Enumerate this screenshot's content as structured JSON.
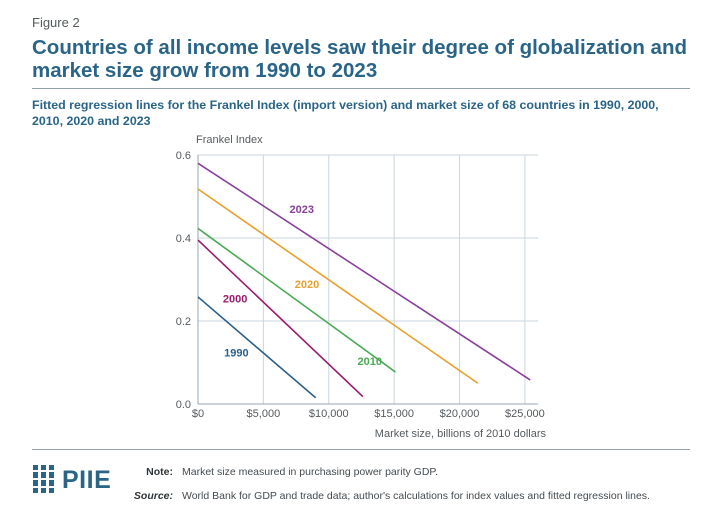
{
  "figure_label": "Figure 2",
  "headline": "Countries of all income levels saw their degree of globalization and market size grow from 1990 to 2023",
  "subtitle": "Fitted regression lines for the Frankel Index (import version) and market size of 68 countries in 1990, 2000, 2010, 2020 and 2023",
  "chart_data": {
    "type": "line",
    "title": "",
    "xlabel": "Market size, billions of 2010 dollars",
    "ylabel": "Frankel Index",
    "xlim": [
      0,
      26000
    ],
    "ylim": [
      0,
      0.6
    ],
    "x_ticks": [
      0,
      5000,
      10000,
      15000,
      20000,
      25000
    ],
    "x_tick_labels": [
      "$0",
      "$5,000",
      "$10,000",
      "$15,000",
      "$20,000",
      "$25,000"
    ],
    "y_ticks": [
      0.0,
      0.2,
      0.4,
      0.6
    ],
    "y_tick_labels": [
      "0.0",
      "0.2",
      "0.4",
      "0.6"
    ],
    "grid": true,
    "series": [
      {
        "name": "1990",
        "color": "#2a5f8a",
        "x": [
          0,
          9000
        ],
        "y": [
          0.258,
          0.015
        ],
        "label_at": [
          2000,
          0.115
        ]
      },
      {
        "name": "2000",
        "color": "#9c1a6b",
        "x": [
          0,
          12600
        ],
        "y": [
          0.395,
          0.018
        ],
        "label_at": [
          1900,
          0.245
        ]
      },
      {
        "name": "2010",
        "color": "#4aaa52",
        "x": [
          0,
          15100
        ],
        "y": [
          0.423,
          0.077
        ],
        "label_at": [
          12200,
          0.094
        ]
      },
      {
        "name": "2020",
        "color": "#e8a02d",
        "x": [
          0,
          21400
        ],
        "y": [
          0.518,
          0.05
        ],
        "label_at": [
          7400,
          0.28
        ]
      },
      {
        "name": "2023",
        "color": "#8a3f9a",
        "x": [
          0,
          25400
        ],
        "y": [
          0.58,
          0.058
        ],
        "label_at": [
          7000,
          0.46
        ]
      }
    ]
  },
  "footer": {
    "logo_text": "PIIE",
    "note_label": "Note:",
    "note_text": "Market size measured in purchasing power parity GDP.",
    "source_label": "Source:",
    "source_text": "World Bank for GDP and trade data; author's calculations for index values and fitted regression lines."
  },
  "colors": {
    "brand": "#2a6587",
    "grid": "#c9d6dd",
    "axis_text": "#555a5e"
  }
}
